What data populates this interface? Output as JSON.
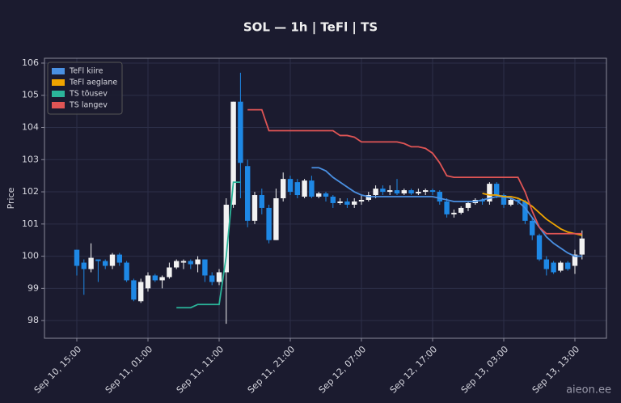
{
  "chart_data": {
    "type": "candlestick",
    "title": "SOL — 1h  |  TeFl  |  TS",
    "y_label": "Price",
    "watermark": "aieon.ee",
    "categories": [
      "Sep 10, 15:00",
      null,
      null,
      null,
      null,
      null,
      null,
      null,
      null,
      null,
      "Sep 11, 01:00",
      null,
      null,
      null,
      null,
      null,
      null,
      null,
      null,
      null,
      "Sep 11, 11:00",
      null,
      null,
      null,
      null,
      null,
      null,
      null,
      null,
      null,
      "Sep 11, 21:00",
      null,
      null,
      null,
      null,
      null,
      null,
      null,
      null,
      null,
      "Sep 12, 07:00",
      null,
      null,
      null,
      null,
      null,
      null,
      null,
      null,
      null,
      "Sep 12, 17:00",
      null,
      null,
      null,
      null,
      null,
      null,
      null,
      null,
      null,
      "Sep 13, 03:00",
      null,
      null,
      null,
      null,
      null,
      null,
      null,
      null,
      null,
      "Sep 13, 13:00",
      null
    ],
    "open": [
      100.2,
      99.8,
      99.6,
      99.9,
      99.85,
      99.7,
      100.05,
      99.8,
      99.25,
      98.6,
      99.0,
      99.4,
      99.25,
      99.35,
      99.65,
      99.8,
      99.85,
      99.75,
      99.9,
      99.4,
      99.2,
      99.5,
      101.6,
      104.8,
      102.8,
      101.1,
      101.9,
      101.5,
      100.5,
      101.8,
      102.4,
      102.3,
      101.85,
      102.35,
      101.85,
      101.95,
      101.85,
      101.65,
      101.7,
      101.6,
      101.7,
      101.75,
      101.9,
      102.1,
      102.0,
      102.05,
      101.95,
      102.05,
      101.95,
      102.0,
      102.05,
      102.0,
      101.7,
      101.3,
      101.35,
      101.5,
      101.65,
      101.75,
      101.7,
      102.25,
      101.9,
      101.6,
      101.75,
      101.7,
      101.1,
      100.65,
      99.9,
      99.8,
      99.55,
      99.8,
      99.7,
      100.05
    ],
    "high": [
      100.2,
      99.9,
      100.4,
      99.9,
      99.9,
      100.1,
      100.1,
      99.85,
      99.3,
      99.3,
      99.5,
      99.45,
      99.4,
      99.8,
      99.9,
      99.9,
      99.9,
      100.0,
      99.9,
      99.5,
      99.6,
      101.8,
      104.8,
      105.7,
      103.0,
      102.0,
      102.1,
      101.6,
      102.1,
      102.6,
      102.5,
      102.4,
      102.4,
      102.5,
      102.0,
      102.0,
      101.9,
      101.8,
      101.8,
      101.8,
      101.9,
      102.0,
      102.2,
      102.2,
      102.2,
      102.4,
      102.1,
      102.1,
      102.1,
      102.1,
      102.1,
      102.05,
      101.8,
      101.45,
      101.55,
      101.7,
      101.8,
      101.8,
      102.3,
      102.3,
      101.95,
      101.8,
      101.8,
      101.75,
      101.2,
      100.7,
      100.0,
      99.85,
      99.85,
      99.85,
      100.2,
      100.8
    ],
    "low": [
      99.4,
      98.8,
      99.5,
      99.2,
      99.6,
      99.6,
      99.7,
      99.2,
      98.6,
      98.55,
      98.9,
      99.2,
      99.0,
      99.3,
      99.6,
      99.6,
      99.6,
      99.5,
      99.2,
      99.1,
      99.1,
      97.9,
      101.5,
      101.8,
      100.9,
      101.0,
      101.3,
      100.4,
      100.5,
      101.7,
      101.9,
      101.8,
      101.8,
      101.8,
      101.8,
      101.7,
      101.5,
      101.6,
      101.5,
      101.5,
      101.6,
      101.7,
      101.8,
      101.9,
      101.9,
      101.9,
      101.9,
      101.9,
      101.9,
      101.9,
      101.9,
      101.6,
      101.2,
      101.2,
      101.3,
      101.4,
      101.6,
      101.6,
      101.6,
      101.8,
      101.5,
      101.55,
      101.6,
      101.0,
      100.5,
      99.85,
      99.4,
      99.45,
      99.5,
      99.55,
      99.45,
      99.9
    ],
    "close": [
      99.7,
      99.6,
      99.95,
      99.85,
      99.7,
      100.05,
      99.8,
      99.25,
      98.65,
      99.2,
      99.4,
      99.25,
      99.35,
      99.65,
      99.85,
      99.85,
      99.75,
      99.9,
      99.4,
      99.2,
      99.5,
      101.6,
      104.8,
      102.9,
      101.1,
      101.9,
      101.5,
      100.5,
      101.8,
      102.4,
      102.0,
      101.9,
      102.35,
      101.85,
      101.95,
      101.85,
      101.65,
      101.7,
      101.6,
      101.7,
      101.75,
      101.9,
      102.1,
      102.0,
      102.05,
      101.95,
      102.05,
      101.95,
      102.0,
      102.05,
      102.0,
      101.7,
      101.3,
      101.35,
      101.5,
      101.65,
      101.75,
      101.7,
      102.25,
      101.9,
      101.6,
      101.75,
      101.7,
      101.1,
      100.65,
      99.9,
      99.6,
      99.5,
      99.8,
      99.6,
      100.05,
      100.55
    ],
    "up_color": "#f2f2f2",
    "down_color": "#1e88e5",
    "series": [
      {
        "name": "TeFl kiire",
        "color": "#4a90e2",
        "values": [
          null,
          null,
          null,
          null,
          null,
          null,
          null,
          null,
          null,
          null,
          null,
          null,
          null,
          null,
          null,
          null,
          null,
          null,
          null,
          null,
          null,
          null,
          null,
          null,
          null,
          null,
          null,
          null,
          null,
          null,
          null,
          null,
          null,
          102.75,
          102.75,
          102.65,
          102.45,
          102.3,
          102.15,
          102.0,
          101.9,
          101.85,
          101.85,
          101.85,
          101.85,
          101.85,
          101.85,
          101.85,
          101.85,
          101.85,
          101.85,
          101.8,
          101.75,
          101.7,
          101.7,
          101.7,
          101.7,
          101.75,
          101.8,
          101.85,
          101.85,
          101.8,
          101.7,
          101.5,
          101.2,
          100.9,
          100.6,
          100.4,
          100.25,
          100.1,
          100.0,
          100.0
        ]
      },
      {
        "name": "TeFl aeglane",
        "color": "#f0a500",
        "values": [
          null,
          null,
          null,
          null,
          null,
          null,
          null,
          null,
          null,
          null,
          null,
          null,
          null,
          null,
          null,
          null,
          null,
          null,
          null,
          null,
          null,
          null,
          null,
          null,
          null,
          null,
          null,
          null,
          null,
          null,
          null,
          null,
          null,
          null,
          null,
          null,
          null,
          null,
          null,
          null,
          null,
          null,
          null,
          null,
          null,
          null,
          null,
          null,
          null,
          null,
          null,
          null,
          null,
          null,
          null,
          null,
          null,
          101.95,
          101.9,
          101.9,
          101.85,
          101.85,
          101.8,
          101.7,
          101.55,
          101.35,
          101.15,
          101.0,
          100.85,
          100.75,
          100.7,
          100.65
        ]
      },
      {
        "name": "TS tõusev",
        "color": "#2bb59a",
        "values": [
          null,
          null,
          null,
          null,
          null,
          null,
          null,
          null,
          null,
          null,
          null,
          null,
          null,
          null,
          98.4,
          98.4,
          98.4,
          98.5,
          98.5,
          98.5,
          98.5,
          100.0,
          102.3,
          102.3,
          null,
          null,
          null,
          null,
          null,
          null,
          null,
          null,
          null,
          null,
          null,
          null,
          null,
          null,
          null,
          null,
          null,
          null,
          null,
          null,
          null,
          null,
          null,
          null,
          null,
          null,
          null,
          null,
          null,
          null,
          null,
          null,
          null,
          null,
          null,
          null,
          null,
          null,
          null,
          null,
          null,
          null,
          null,
          null,
          null,
          null,
          null,
          null
        ]
      },
      {
        "name": "TS langev",
        "color": "#e05555",
        "values": [
          null,
          null,
          null,
          null,
          null,
          null,
          null,
          null,
          null,
          null,
          null,
          null,
          null,
          null,
          null,
          null,
          null,
          null,
          null,
          null,
          null,
          null,
          null,
          null,
          104.55,
          104.55,
          104.55,
          103.9,
          103.9,
          103.9,
          103.9,
          103.9,
          103.9,
          103.9,
          103.9,
          103.9,
          103.9,
          103.75,
          103.75,
          103.7,
          103.55,
          103.55,
          103.55,
          103.55,
          103.55,
          103.55,
          103.5,
          103.4,
          103.4,
          103.35,
          103.2,
          102.9,
          102.5,
          102.45,
          102.45,
          102.45,
          102.45,
          102.45,
          102.45,
          102.45,
          102.45,
          102.45,
          102.45,
          102.0,
          101.4,
          100.9,
          100.7,
          100.7,
          100.7,
          100.7,
          100.7,
          100.7
        ]
      }
    ],
    "ylim": [
      97.45,
      106.15
    ],
    "yticks": [
      98,
      99,
      100,
      101,
      102,
      103,
      104,
      105,
      106
    ],
    "grid": true,
    "legend": "upper left"
  }
}
